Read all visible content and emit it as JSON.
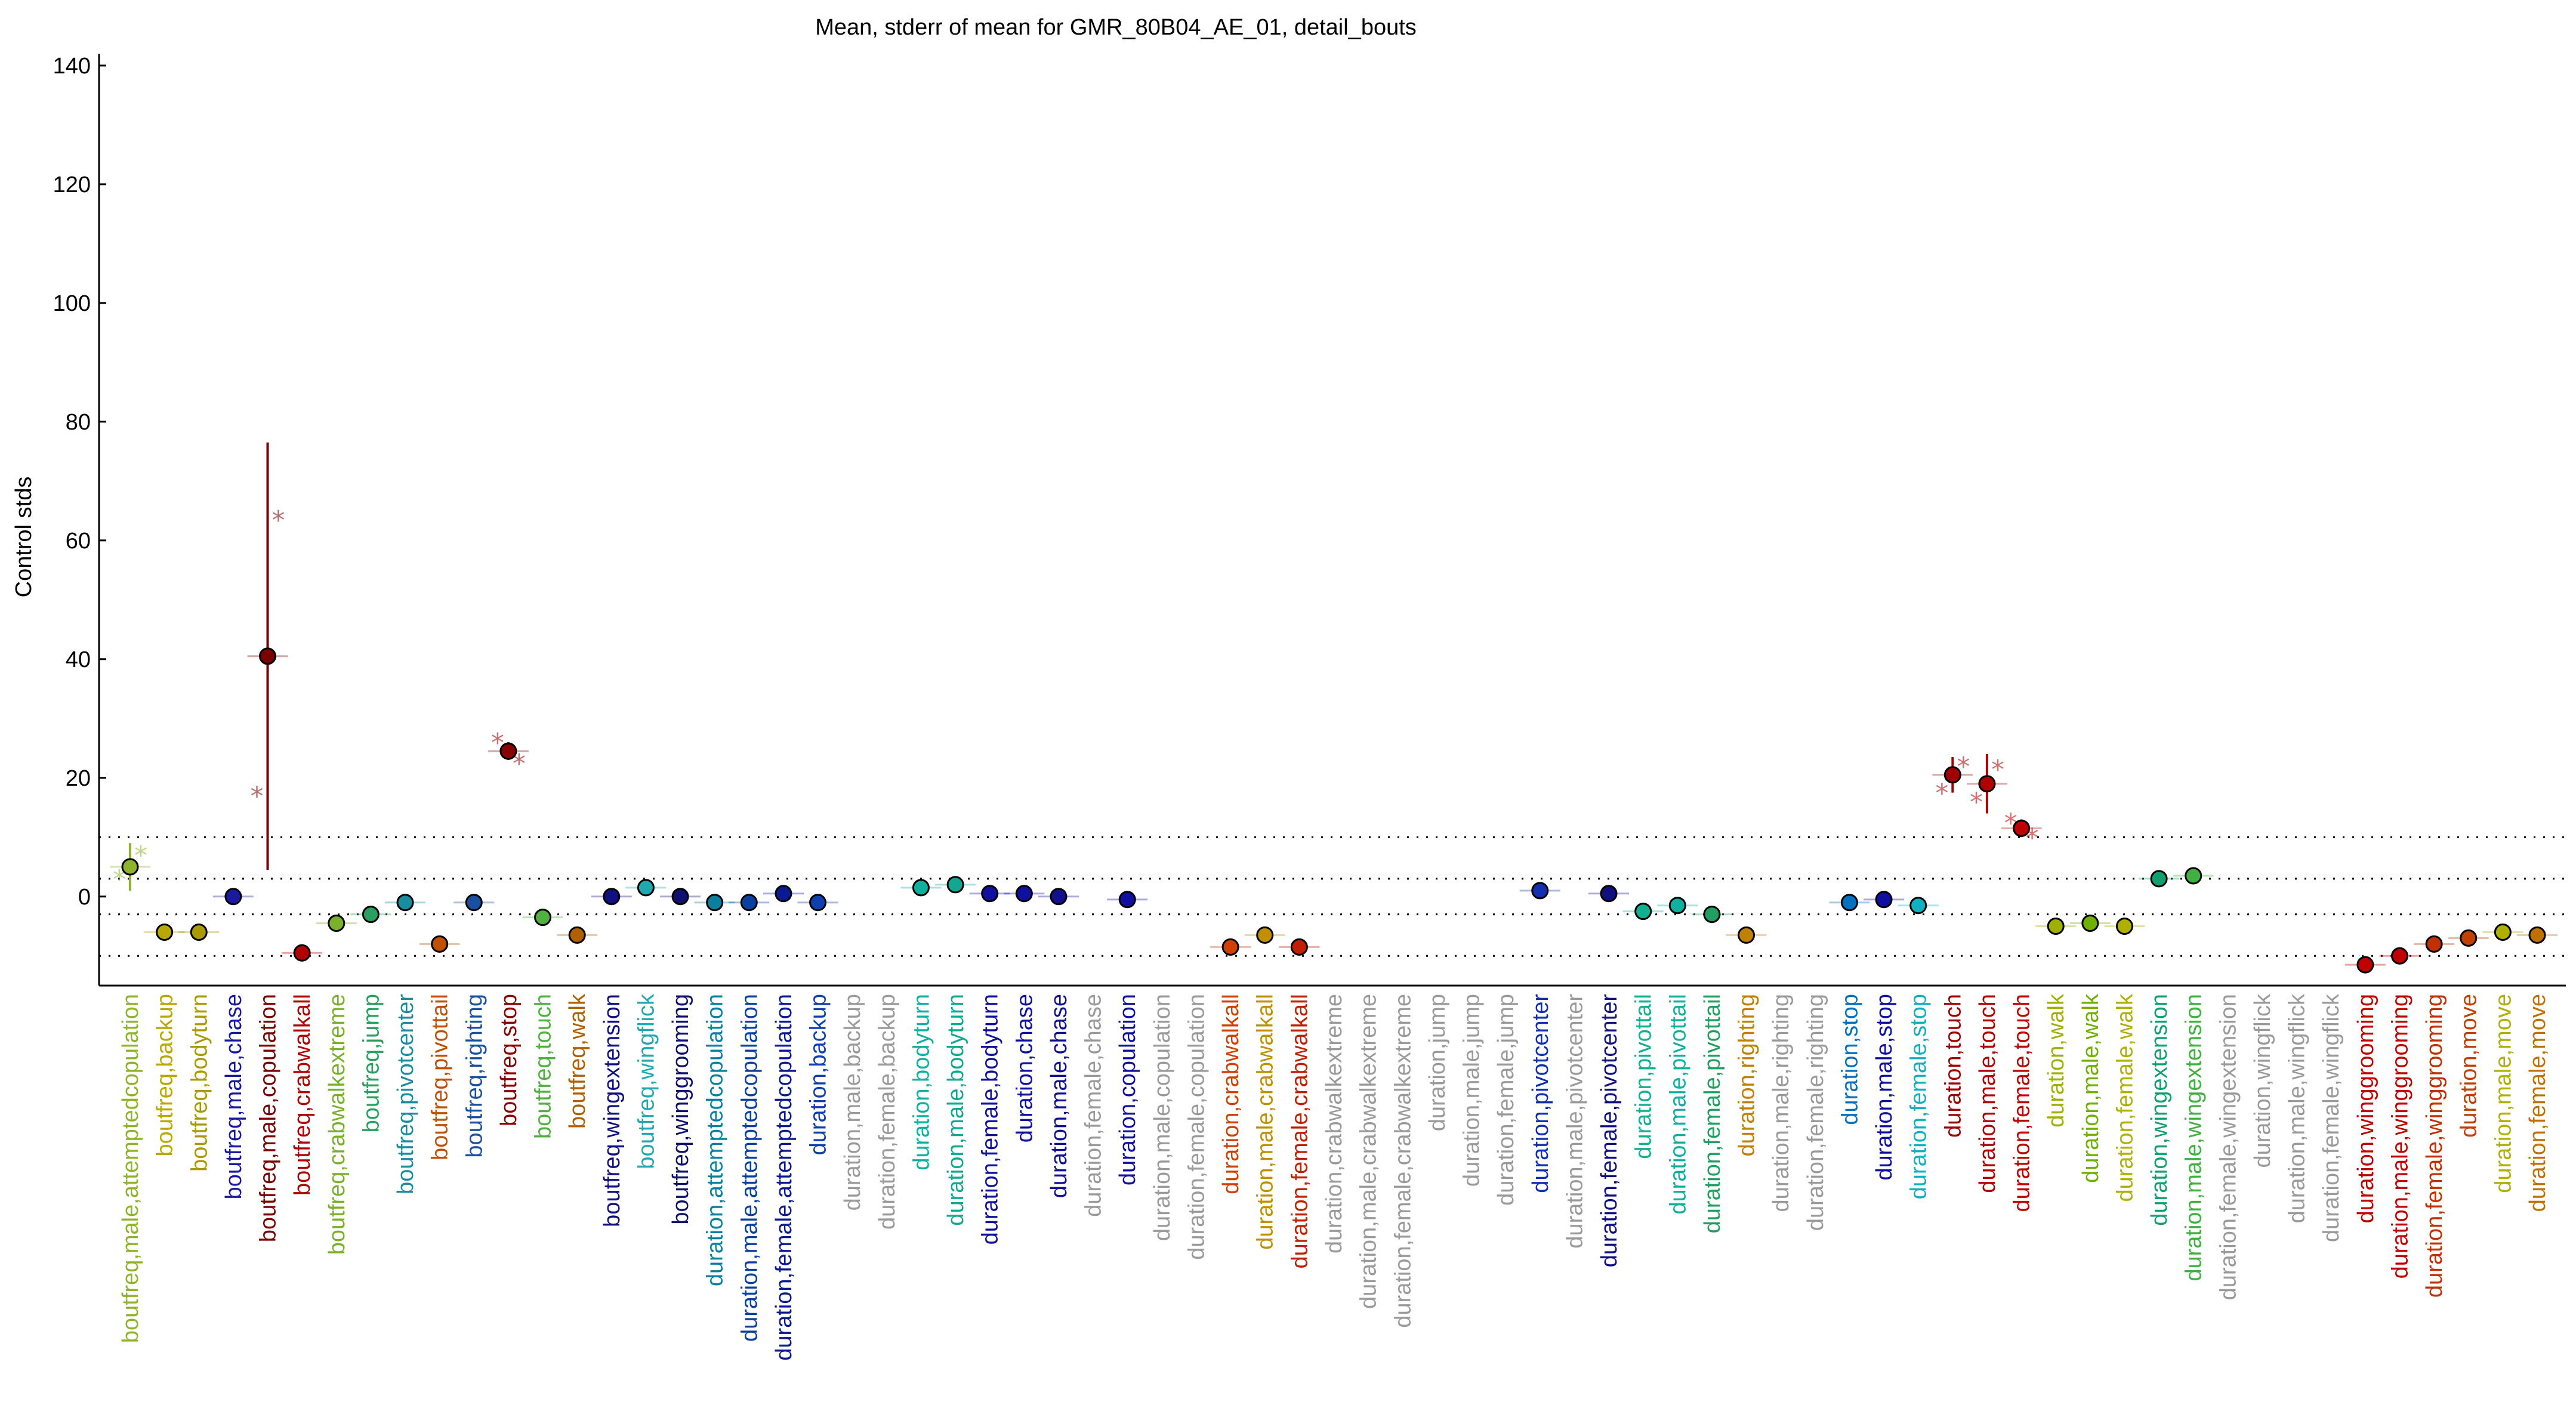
{
  "chart_data": {
    "type": "scatter",
    "title": "Mean, stderr of mean for GMR_80B04_AE_01, detail_bouts",
    "xlabel": "",
    "ylabel": "Control stds",
    "ylim": [
      -15,
      142
    ],
    "yticks": [
      0,
      20,
      40,
      60,
      80,
      100,
      120,
      140
    ],
    "reference_lines": [
      -10,
      -3,
      3,
      10
    ],
    "grid": false,
    "categories": [
      "boutfreq,male,attemptedcopulation",
      "boutfreq,backup",
      "boutfreq,bodyturn",
      "boutfreq,male,chase",
      "boutfreq,male,copulation",
      "boutfreq,crabwalkall",
      "boutfreq,crabwalkextreme",
      "boutfreq,jump",
      "boutfreq,pivotcenter",
      "boutfreq,pivottail",
      "boutfreq,righting",
      "boutfreq,stop",
      "boutfreq,touch",
      "boutfreq,walk",
      "boutfreq,wingextension",
      "boutfreq,wingflick",
      "boutfreq,winggrooming",
      "duration,attemptedcopulation",
      "duration,male,attemptedcopulation",
      "duration,female,attemptedcopulation",
      "duration,backup",
      "duration,male,backup",
      "duration,female,backup",
      "duration,bodyturn",
      "duration,male,bodyturn",
      "duration,female,bodyturn",
      "duration,chase",
      "duration,male,chase",
      "duration,female,chase",
      "duration,copulation",
      "duration,male,copulation",
      "duration,female,copulation",
      "duration,crabwalkall",
      "duration,male,crabwalkall",
      "duration,female,crabwalkall",
      "duration,crabwalkextreme",
      "duration,male,crabwalkextreme",
      "duration,female,crabwalkextreme",
      "duration,jump",
      "duration,male,jump",
      "duration,female,jump",
      "duration,pivotcenter",
      "duration,male,pivotcenter",
      "duration,female,pivotcenter",
      "duration,pivottail",
      "duration,male,pivottail",
      "duration,female,pivottail",
      "duration,righting",
      "duration,male,righting",
      "duration,female,righting",
      "duration,stop",
      "duration,male,stop",
      "duration,female,stop",
      "duration,touch",
      "duration,male,touch",
      "duration,female,touch",
      "duration,walk",
      "duration,male,walk",
      "duration,female,walk",
      "duration,wingextension",
      "duration,male,wingextension",
      "duration,female,wingextension",
      "duration,wingflick",
      "duration,male,wingflick",
      "duration,female,wingflick",
      "duration,winggrooming",
      "duration,male,winggrooming",
      "duration,female,winggrooming",
      "duration,move",
      "duration,male,move",
      "duration,female,move"
    ],
    "colors": [
      "#8db42a",
      "#b8a800",
      "#a89a00",
      "#1a1aa0",
      "#7a0000",
      "#b00000",
      "#7ab02a",
      "#2aa060",
      "#1a8ca0",
      "#c05000",
      "#1a50a0",
      "#8a0000",
      "#50b040",
      "#b06000",
      "#101080",
      "#20a8b0",
      "#101070",
      "#0a80a0",
      "#0a40a0",
      "#0a1a90",
      "#1040b0",
      "#9a9a9a",
      "#9a9a9a",
      "#10b0a0",
      "#10a890",
      "#1010a0",
      "#1010a0",
      "#101090",
      "#9a9a9a",
      "#1010a0",
      "#9a9a9a",
      "#9a9a9a",
      "#d04000",
      "#c09000",
      "#c02000",
      "#9a9a9a",
      "#9a9a9a",
      "#9a9a9a",
      "#9a9a9a",
      "#9a9a9a",
      "#9a9a9a",
      "#1030b0",
      "#9a9a9a",
      "#101080",
      "#10b090",
      "#10b0a0",
      "#20a060",
      "#c08000",
      "#9a9a9a",
      "#9a9a9a",
      "#0070c0",
      "#1010a0",
      "#10b0c0",
      "#a00000",
      "#b00000",
      "#c00000",
      "#a0b000",
      "#70b000",
      "#b0b000",
      "#10a070",
      "#40b040",
      "#9a9a9a",
      "#9a9a9a",
      "#9a9a9a",
      "#9a9a9a",
      "#c00000",
      "#c00000",
      "#c03000",
      "#c04000",
      "#b0b000",
      "#c07000"
    ],
    "means": [
      5,
      -6,
      -6,
      0,
      40.5,
      -9.5,
      -4.5,
      -3,
      -1,
      -8,
      -1,
      24.5,
      -3.5,
      -6.5,
      0,
      1.5,
      0,
      -1,
      -1,
      0.5,
      -1,
      null,
      null,
      1.5,
      2,
      0.5,
      0.5,
      0,
      null,
      -0.5,
      null,
      null,
      -8.5,
      -6.5,
      -8.5,
      null,
      null,
      null,
      null,
      null,
      null,
      1,
      null,
      0.5,
      -2.5,
      -1.5,
      -3,
      -6.5,
      null,
      null,
      -1,
      -0.5,
      -1.5,
      20.5,
      19,
      11.5,
      -5,
      -4.5,
      -5,
      3,
      3.5,
      null,
      null,
      null,
      null,
      -11.5,
      -10,
      -8,
      -7,
      -6,
      -6.5
    ],
    "sem": [
      4,
      0.5,
      0.5,
      0.3,
      36,
      0.5,
      0.4,
      0.3,
      0.3,
      0.4,
      0.3,
      1.5,
      0.3,
      0.4,
      0.3,
      0.3,
      0.3,
      0.3,
      0.3,
      0.3,
      0.3,
      null,
      null,
      0.3,
      0.3,
      0.3,
      0.3,
      0.3,
      null,
      0.3,
      null,
      null,
      0.4,
      0.4,
      0.4,
      null,
      null,
      null,
      null,
      null,
      null,
      0.3,
      null,
      0.3,
      0.3,
      0.3,
      0.3,
      0.4,
      null,
      null,
      0.3,
      0.3,
      0.3,
      3,
      5,
      1.5,
      0.3,
      0.3,
      0.3,
      0.3,
      0.3,
      null,
      null,
      null,
      null,
      0.8,
      0.8,
      0.5,
      0.4,
      0.3,
      0.4
    ],
    "replicate_points": [
      {
        "category": "boutfreq,male,attemptedcopulation",
        "values": [
          3,
          7
        ]
      },
      {
        "category": "boutfreq,male,copulation",
        "values": [
          17,
          63.5
        ]
      },
      {
        "category": "boutfreq,stop",
        "values": [
          26,
          22.5
        ]
      },
      {
        "category": "duration,touch",
        "values": [
          17.5,
          22
        ]
      },
      {
        "category": "duration,male,touch",
        "values": [
          16,
          21.5
        ]
      },
      {
        "category": "duration,female,touch",
        "values": [
          12.5,
          10
        ]
      }
    ]
  }
}
